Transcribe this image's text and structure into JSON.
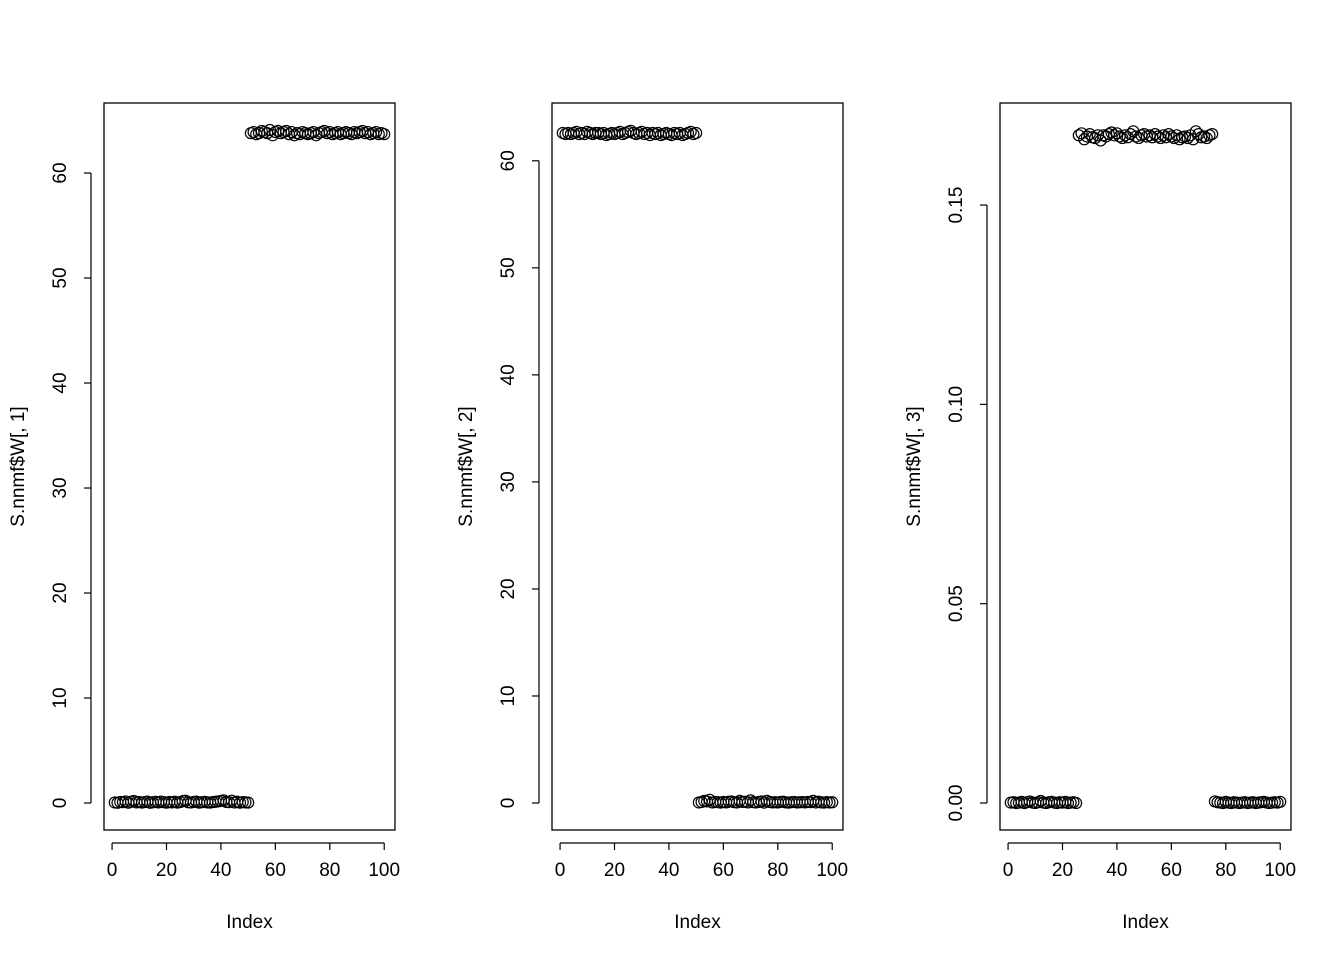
{
  "chart_data": [
    {
      "type": "scatter",
      "xlabel": "Index",
      "ylabel": "S.nnmf$W[, 1]",
      "xlim": [
        -2.96,
        103.96
      ],
      "ylim": [
        -2.57,
        66.67
      ],
      "xticks": [
        0,
        20,
        40,
        60,
        80,
        100
      ],
      "yticks": [
        0,
        10,
        20,
        30,
        40,
        50,
        60
      ],
      "x": [
        1,
        2,
        3,
        4,
        5,
        6,
        7,
        8,
        9,
        10,
        11,
        12,
        13,
        14,
        15,
        16,
        17,
        18,
        19,
        20,
        21,
        22,
        23,
        24,
        25,
        26,
        27,
        28,
        29,
        30,
        31,
        32,
        33,
        34,
        35,
        36,
        37,
        38,
        39,
        40,
        41,
        42,
        43,
        44,
        45,
        46,
        47,
        48,
        49,
        50,
        51,
        52,
        53,
        54,
        55,
        56,
        57,
        58,
        59,
        60,
        61,
        62,
        63,
        64,
        65,
        66,
        67,
        68,
        69,
        70,
        71,
        72,
        73,
        74,
        75,
        76,
        77,
        78,
        79,
        80,
        81,
        82,
        83,
        84,
        85,
        86,
        87,
        88,
        89,
        90,
        91,
        92,
        93,
        94,
        95,
        96,
        97,
        98,
        99,
        100
      ],
      "values": [
        0.05,
        0.02,
        0.1,
        0.08,
        0.15,
        0.03,
        0.12,
        0.2,
        0.06,
        0.1,
        0.04,
        0.09,
        0.13,
        0.02,
        0.07,
        0.11,
        0.05,
        0.14,
        0.08,
        0.03,
        0.1,
        0.06,
        0.12,
        0.04,
        0.09,
        0.18,
        0.22,
        0.07,
        0.05,
        0.1,
        0.13,
        0.03,
        0.08,
        0.11,
        0.06,
        0.04,
        0.09,
        0.12,
        0.15,
        0.2,
        0.25,
        0.1,
        0.08,
        0.22,
        0.05,
        0.12,
        0.03,
        0.09,
        0.06,
        0.04,
        63.8,
        63.9,
        63.7,
        63.8,
        64.0,
        63.9,
        63.8,
        64.1,
        63.6,
        63.9,
        64.0,
        63.8,
        63.9,
        64.0,
        63.7,
        63.9,
        63.6,
        63.8,
        63.7,
        63.9,
        63.8,
        63.7,
        63.8,
        63.9,
        63.6,
        63.8,
        63.9,
        64.0,
        63.8,
        63.9,
        63.7,
        63.8,
        63.9,
        63.7,
        63.8,
        63.9,
        63.8,
        63.7,
        63.9,
        63.8,
        63.9,
        64.0,
        63.8,
        63.9,
        63.7,
        63.8,
        63.9,
        63.7,
        63.8,
        63.7
      ]
    },
    {
      "type": "scatter",
      "xlabel": "Index",
      "ylabel": "S.nnmf$W[, 2]",
      "xlim": [
        -2.96,
        103.96
      ],
      "ylim": [
        -2.52,
        65.4
      ],
      "xticks": [
        0,
        20,
        40,
        60,
        80,
        100
      ],
      "yticks": [
        0,
        10,
        20,
        30,
        40,
        50,
        60
      ],
      "x": [
        1,
        2,
        3,
        4,
        5,
        6,
        7,
        8,
        9,
        10,
        11,
        12,
        13,
        14,
        15,
        16,
        17,
        18,
        19,
        20,
        21,
        22,
        23,
        24,
        25,
        26,
        27,
        28,
        29,
        30,
        31,
        32,
        33,
        34,
        35,
        36,
        37,
        38,
        39,
        40,
        41,
        42,
        43,
        44,
        45,
        46,
        47,
        48,
        49,
        50,
        51,
        52,
        53,
        54,
        55,
        56,
        57,
        58,
        59,
        60,
        61,
        62,
        63,
        64,
        65,
        66,
        67,
        68,
        69,
        70,
        71,
        72,
        73,
        74,
        75,
        76,
        77,
        78,
        79,
        80,
        81,
        82,
        83,
        84,
        85,
        86,
        87,
        88,
        89,
        90,
        91,
        92,
        93,
        94,
        95,
        96,
        97,
        98,
        99,
        100
      ],
      "values": [
        62.6,
        62.5,
        62.6,
        62.5,
        62.6,
        62.7,
        62.5,
        62.6,
        62.5,
        62.7,
        62.6,
        62.5,
        62.6,
        62.6,
        62.5,
        62.6,
        62.4,
        62.5,
        62.6,
        62.5,
        62.6,
        62.7,
        62.5,
        62.6,
        62.7,
        62.8,
        62.6,
        62.5,
        62.6,
        62.7,
        62.5,
        62.6,
        62.4,
        62.6,
        62.5,
        62.6,
        62.4,
        62.5,
        62.6,
        62.5,
        62.4,
        62.6,
        62.5,
        62.6,
        62.4,
        62.5,
        62.6,
        62.7,
        62.5,
        62.6,
        0.05,
        0.1,
        0.2,
        0.15,
        0.3,
        0.05,
        0.1,
        0.08,
        0.04,
        0.1,
        0.06,
        0.12,
        0.15,
        0.08,
        0.05,
        0.2,
        0.1,
        0.12,
        0.06,
        0.25,
        0.08,
        0.05,
        0.1,
        0.15,
        0.04,
        0.2,
        0.1,
        0.06,
        0.08,
        0.05,
        0.1,
        0.12,
        0.06,
        0.04,
        0.08,
        0.1,
        0.05,
        0.07,
        0.09,
        0.06,
        0.1,
        0.08,
        0.2,
        0.05,
        0.12,
        0.06,
        0.04,
        0.09,
        0.05,
        0.07
      ]
    },
    {
      "type": "scatter",
      "xlabel": "Index",
      "ylabel": "S.nnmf$W[, 3]",
      "xlim": [
        -2.96,
        103.96
      ],
      "ylim": [
        -0.00677,
        0.1756
      ],
      "xticks": [
        0,
        20,
        40,
        60,
        80,
        100
      ],
      "yticks": [
        {
          "value": 0,
          "label": "0.00"
        },
        0.05,
        {
          "value": 0.1,
          "label": "0.10"
        },
        0.15
      ],
      "x": [
        1,
        2,
        3,
        4,
        5,
        6,
        7,
        8,
        9,
        10,
        11,
        12,
        13,
        14,
        15,
        16,
        17,
        18,
        19,
        20,
        21,
        22,
        23,
        24,
        25,
        26,
        27,
        28,
        29,
        30,
        31,
        32,
        33,
        34,
        35,
        36,
        37,
        38,
        39,
        40,
        41,
        42,
        43,
        44,
        45,
        46,
        47,
        48,
        49,
        50,
        51,
        52,
        53,
        54,
        55,
        56,
        57,
        58,
        59,
        60,
        61,
        62,
        63,
        64,
        65,
        66,
        67,
        68,
        69,
        70,
        71,
        72,
        73,
        74,
        75,
        76,
        77,
        78,
        79,
        80,
        81,
        82,
        83,
        84,
        85,
        86,
        87,
        88,
        89,
        90,
        91,
        92,
        93,
        94,
        95,
        96,
        97,
        98,
        99,
        100
      ],
      "values": [
        0.0001,
        0.0002,
        0,
        0.0001,
        0.0003,
        0,
        0.0002,
        0.0004,
        0.0001,
        0,
        0.0002,
        0.0005,
        0.0001,
        0,
        0.0002,
        0.0003,
        0.0001,
        0,
        0.0002,
        0.0001,
        0.0003,
        0,
        0.0001,
        0.0002,
        0,
        0.1675,
        0.168,
        0.1665,
        0.1672,
        0.1678,
        0.167,
        0.1668,
        0.1675,
        0.1662,
        0.1675,
        0.1672,
        0.1678,
        0.1682,
        0.1675,
        0.168,
        0.1672,
        0.1668,
        0.1675,
        0.167,
        0.1678,
        0.1685,
        0.1672,
        0.1668,
        0.1675,
        0.1678,
        0.1672,
        0.1675,
        0.167,
        0.1678,
        0.1672,
        0.1668,
        0.1675,
        0.167,
        0.1678,
        0.1672,
        0.1668,
        0.1675,
        0.1665,
        0.167,
        0.1672,
        0.1668,
        0.1675,
        0.1665,
        0.1685,
        0.1678,
        0.167,
        0.1672,
        0.1668,
        0.1675,
        0.1678,
        0.0004,
        0.0002,
        0.0001,
        0,
        0.0003,
        0.0001,
        0,
        0.0002,
        0.0001,
        0,
        0.0001,
        0.0002,
        0,
        0.0001,
        0.0002,
        0,
        0.0001,
        0.0002,
        0.0003,
        0.0001,
        0,
        0.0001,
        0.0002,
        0.0001,
        0.0003
      ]
    }
  ]
}
